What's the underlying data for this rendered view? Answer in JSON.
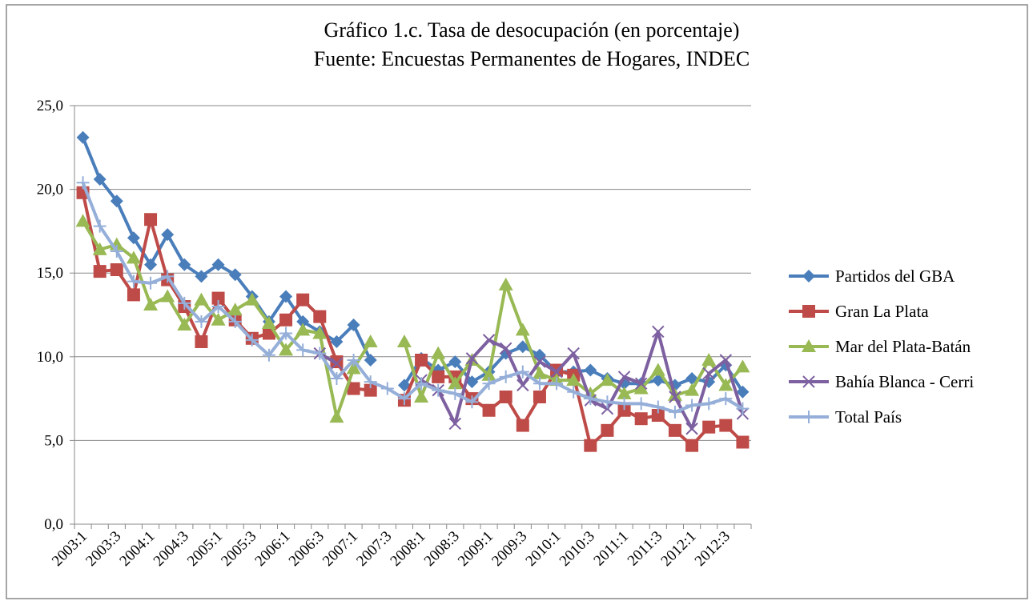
{
  "chart_data": {
    "type": "line",
    "title": "Gráfico 1.c. Tasa de desocupación (en porcentaje)",
    "subtitle": "Fuente: Encuestas Permanentes de Hogares, INDEC",
    "categories": [
      "2003:1",
      null,
      "2003:3",
      null,
      "2004:1",
      null,
      "2004:3",
      null,
      "2005:1",
      null,
      "2005:3",
      null,
      "2006:1",
      null,
      "2006:3",
      null,
      "2007:1",
      null,
      "2007:3",
      null,
      "2008:1",
      null,
      "2008:3",
      null,
      "2009:1",
      null,
      "2009:3",
      null,
      "2010:1",
      null,
      "2010:3",
      null,
      "2011:1",
      null,
      "2011:3",
      null,
      "2012:1",
      null,
      "2012:3",
      null
    ],
    "ylim": [
      0,
      25
    ],
    "yticks": [
      {
        "value": 0,
        "label": "0,0"
      },
      {
        "value": 5,
        "label": "5,0"
      },
      {
        "value": 10,
        "label": "10,0"
      },
      {
        "value": 15,
        "label": "15,0"
      },
      {
        "value": 20,
        "label": "20,0"
      },
      {
        "value": 25,
        "label": "25,0"
      }
    ],
    "grid": true,
    "legend": "right",
    "series": [
      {
        "name": "Partidos del GBA",
        "color": "#4a7ebb",
        "marker": "diamond",
        "values": [
          23.1,
          20.6,
          19.3,
          17.1,
          15.5,
          17.3,
          15.5,
          14.8,
          15.5,
          14.9,
          13.6,
          12.1,
          13.6,
          12.1,
          11.5,
          10.9,
          11.9,
          9.8,
          null,
          8.3,
          9.9,
          9.2,
          9.7,
          8.5,
          9.1,
          10.2,
          10.6,
          10.1,
          9.1,
          9.1,
          9.2,
          8.7,
          8.4,
          8.4,
          8.6,
          8.3,
          8.7,
          8.5,
          9.5,
          7.9
        ]
      },
      {
        "name": "Gran La Plata",
        "color": "#be4b48",
        "marker": "square",
        "values": [
          19.8,
          15.1,
          15.2,
          13.7,
          18.2,
          14.6,
          13.0,
          10.9,
          13.5,
          12.2,
          11.1,
          11.4,
          12.2,
          13.4,
          12.4,
          9.7,
          8.1,
          8.0,
          null,
          7.4,
          9.8,
          8.8,
          8.8,
          7.5,
          6.8,
          7.6,
          5.9,
          7.6,
          9.2,
          8.9,
          4.7,
          5.6,
          6.8,
          6.3,
          6.5,
          5.6,
          4.7,
          5.8,
          5.9,
          4.9
        ]
      },
      {
        "name": "Mar del Plata-Batán",
        "color": "#98b954",
        "marker": "triangle",
        "values": [
          18.1,
          16.4,
          16.7,
          15.9,
          13.1,
          13.6,
          11.9,
          13.4,
          12.2,
          12.8,
          13.4,
          12.0,
          10.4,
          11.6,
          11.4,
          6.4,
          9.3,
          10.9,
          null,
          10.9,
          7.6,
          10.2,
          8.4,
          9.8,
          8.9,
          14.3,
          11.6,
          9.0,
          8.6,
          8.6,
          7.8,
          8.6,
          7.8,
          8.1,
          9.2,
          7.7,
          8.0,
          9.8,
          8.3,
          9.4
        ]
      },
      {
        "name": "Bahía Blanca - Cerri",
        "color": "#7d60a0",
        "marker": "x",
        "values": [
          null,
          null,
          null,
          null,
          null,
          null,
          null,
          null,
          null,
          null,
          null,
          null,
          null,
          null,
          10.2,
          9.6,
          null,
          null,
          null,
          null,
          8.6,
          8.0,
          6.0,
          9.9,
          11.0,
          10.5,
          8.3,
          9.7,
          9.1,
          10.2,
          7.4,
          6.9,
          8.8,
          8.4,
          11.5,
          7.6,
          5.7,
          9.0,
          9.8,
          6.6
        ]
      },
      {
        "name": "Total País",
        "color": "#95afd9",
        "marker": "plus",
        "values": [
          20.4,
          17.8,
          16.3,
          14.5,
          14.4,
          14.8,
          13.2,
          12.1,
          13.0,
          12.1,
          11.0,
          10.1,
          11.4,
          10.4,
          10.2,
          8.7,
          9.8,
          8.5,
          8.1,
          7.5,
          8.4,
          8.0,
          7.8,
          7.3,
          8.4,
          8.8,
          9.1,
          8.4,
          8.4,
          7.9,
          7.5,
          7.3,
          7.2,
          7.2,
          7.0,
          6.7,
          7.1,
          7.2,
          7.5,
          6.9
        ]
      }
    ]
  }
}
